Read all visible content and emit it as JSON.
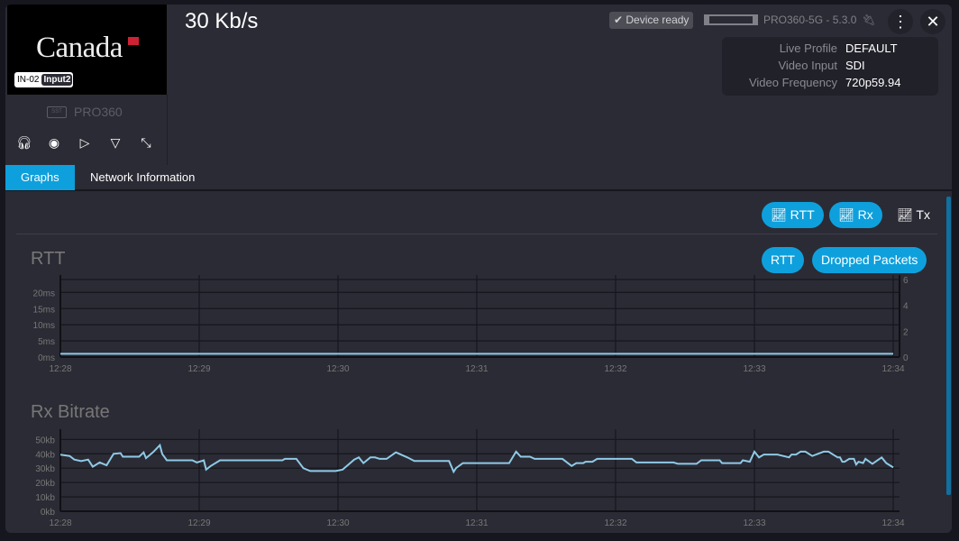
{
  "header": {
    "rate": "30 Kb/s",
    "status": "Device ready",
    "model": "PRO360-5G - 5.3.0"
  },
  "thumbnail": {
    "logo": "Canada",
    "input_id": "IN-02",
    "input_name": "Input2"
  },
  "device": {
    "name": "PRO360",
    "icon_text": "SST"
  },
  "info": [
    {
      "label": "Live Profile",
      "value": "DEFAULT"
    },
    {
      "label": "Video Input",
      "value": "SDI"
    },
    {
      "label": "Video Frequency",
      "value": "720p59.94"
    }
  ],
  "tabs": [
    {
      "label": "Graphs",
      "active": true
    },
    {
      "label": "Network Information",
      "active": false
    }
  ],
  "graph_toggles": [
    {
      "label": "RTT",
      "active": true
    },
    {
      "label": "Rx",
      "active": true
    },
    {
      "label": "Tx",
      "active": false
    }
  ],
  "rtt_toggles": [
    {
      "label": "RTT"
    },
    {
      "label": "Dropped Packets"
    }
  ],
  "colors": {
    "accent": "#0ea0dc",
    "line": "#8ecae6"
  },
  "chart_data": [
    {
      "type": "line",
      "title": "RTT",
      "ylim": [
        0,
        24
      ],
      "y2lim": [
        0,
        6
      ],
      "yticks": [
        "0ms",
        "5ms",
        "10ms",
        "15ms",
        "20ms"
      ],
      "y2ticks": [
        "0",
        "2",
        "4",
        "6"
      ],
      "xticks": [
        "12:28",
        "12:29",
        "12:30",
        "12:31",
        "12:32",
        "12:33",
        "12:34"
      ],
      "grid": true,
      "series": [
        {
          "x": [
            "12:28:00",
            "12:34:00"
          ],
          "y": [
            1,
            1
          ]
        }
      ]
    },
    {
      "type": "line",
      "title": "Rx Bitrate",
      "ylim": [
        0,
        54
      ],
      "yticks": [
        "0kb",
        "10kb",
        "20kb",
        "30kb",
        "40kb",
        "50kb"
      ],
      "xticks": [
        "12:28",
        "12:29",
        "12:30",
        "12:31",
        "12:32",
        "12:33",
        "12:34"
      ],
      "grid": true,
      "series": [
        {
          "x": [
            "12:28:00",
            "12:28:04",
            "12:28:06",
            "12:28:09",
            "12:28:12",
            "12:28:14",
            "12:28:17",
            "12:28:20",
            "12:28:23",
            "12:28:26",
            "12:28:27",
            "12:28:34",
            "12:28:36",
            "12:28:37",
            "12:28:40",
            "12:28:43",
            "12:28:44",
            "12:28:46",
            "12:28:57",
            "12:28:59",
            "12:29:02",
            "12:29:03",
            "12:29:05",
            "12:29:09",
            "12:29:36",
            "12:29:37",
            "12:29:42",
            "12:29:45",
            "12:29:48",
            "12:29:59",
            "12:30:02",
            "12:30:07",
            "12:30:09",
            "12:30:11",
            "12:30:14",
            "12:30:16",
            "12:30:18",
            "12:30:21",
            "12:30:25",
            "12:30:30",
            "12:30:33",
            "12:30:48",
            "12:30:50",
            "12:30:51",
            "12:30:54",
            "12:31:14",
            "12:31:17",
            "12:31:19",
            "12:31:23",
            "12:31:25",
            "12:31:37",
            "12:31:41",
            "12:31:43",
            "12:31:46",
            "12:31:47",
            "12:31:50",
            "12:31:52",
            "12:32:07",
            "12:32:09",
            "12:32:25",
            "12:32:27",
            "12:32:35",
            "12:32:37",
            "12:32:45",
            "12:32:46",
            "12:32:54",
            "12:32:55",
            "12:32:58",
            "12:33:00",
            "12:33:02",
            "12:33:04",
            "12:33:10",
            "12:33:15",
            "12:33:16",
            "12:33:18",
            "12:33:20",
            "12:33:22",
            "12:33:25",
            "12:33:30",
            "12:33:32",
            "12:33:36",
            "12:33:37",
            "12:33:38",
            "12:33:39",
            "12:33:41",
            "12:33:43",
            "12:33:44",
            "12:33:45",
            "12:33:47",
            "12:33:48",
            "12:33:51",
            "12:33:55",
            "12:33:57",
            "12:34:00"
          ],
          "y": [
            39.4,
            38.5,
            36,
            35,
            36,
            31,
            34,
            32,
            40,
            40.5,
            38,
            38,
            41,
            37,
            41,
            46,
            40,
            35.5,
            35.5,
            34,
            35.5,
            29,
            31.5,
            35.5,
            35.5,
            36.5,
            36.5,
            30,
            28,
            28,
            29,
            36,
            37.5,
            33.5,
            37.5,
            37.5,
            36.5,
            36.5,
            41,
            37.5,
            35,
            35,
            27.5,
            30,
            33.5,
            33.5,
            41.5,
            38,
            38,
            36.5,
            36.5,
            31.5,
            33.5,
            33.5,
            34.5,
            34.5,
            36.5,
            36.5,
            34,
            34,
            33,
            33,
            35.5,
            35.5,
            33.5,
            33.5,
            35.5,
            34.5,
            41.5,
            37.5,
            39.5,
            39.5,
            37.5,
            39.5,
            39.5,
            41.5,
            41.5,
            38.5,
            41.5,
            41.5,
            37.5,
            37.5,
            34.5,
            34.5,
            36.5,
            36.5,
            32.5,
            34.5,
            33.5,
            36.5,
            33,
            37.5,
            33.5,
            30.5
          ]
        }
      ]
    }
  ]
}
